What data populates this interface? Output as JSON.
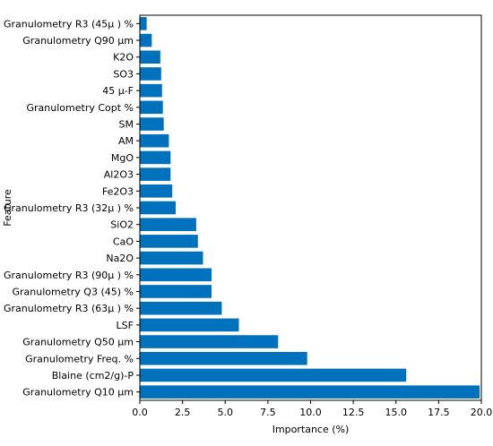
{
  "chart_data": {
    "type": "bar",
    "orientation": "horizontal",
    "xlabel": "Importance (%)",
    "ylabel": "Feature",
    "xlim": [
      0,
      20
    ],
    "xticks": [
      "0.0",
      "2.5",
      "5.0",
      "7.5",
      "10.0",
      "12.5",
      "15.0",
      "17.5",
      "20.0"
    ],
    "grid": false,
    "bar_color": "#0072BD",
    "categories": [
      "Granulometry  Q10 µm",
      "Blaine (cm2/g)-P",
      "Granulometry  Freq.  %",
      "Granulometry  Q50 µm",
      "LSF",
      "Granulometry  R3 (63µ )  %",
      "Granulometry Q3 (45)  %",
      "Granulometry  R3 (90µ )  %",
      "Na2O",
      "CaO",
      "SiO2",
      "Granulometry  R3 (32µ )  %",
      "Fe2O3",
      "Al2O3",
      "MgO",
      "AM",
      "SM",
      "Granulometry  Copt  %",
      "45 µ-F",
      "SO3",
      "K2O",
      "Granulometry  Q90 µm",
      "Granulometry  R3 (45µ )  %"
    ],
    "values": [
      19.9,
      15.6,
      9.8,
      8.1,
      5.8,
      4.8,
      4.2,
      4.2,
      3.7,
      3.4,
      3.3,
      2.1,
      1.9,
      1.8,
      1.8,
      1.7,
      1.4,
      1.35,
      1.3,
      1.25,
      1.2,
      0.7,
      0.4
    ]
  }
}
